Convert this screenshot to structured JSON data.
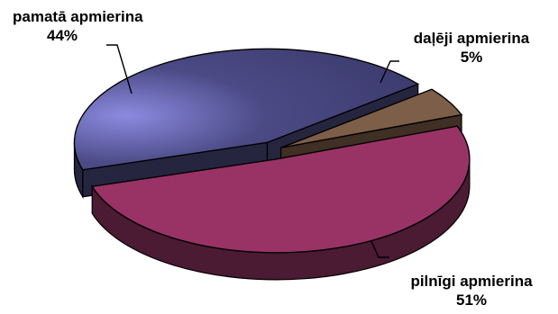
{
  "chart_data": {
    "type": "pie",
    "three_d": true,
    "legend": "none",
    "slices": [
      {
        "name": "pamatā apmierina",
        "value": 44,
        "label": "44%",
        "color": "#4B4A85",
        "side_color": "#26253F"
      },
      {
        "name": "daļēji apmierina",
        "value": 5,
        "label": "5%",
        "color": "#7D5E48",
        "side_color": "#3F2F24"
      },
      {
        "name": "pilnīgi apmierina",
        "value": 51,
        "label": "51%",
        "color": "#993366",
        "side_color": "#4B1A33"
      }
    ]
  }
}
